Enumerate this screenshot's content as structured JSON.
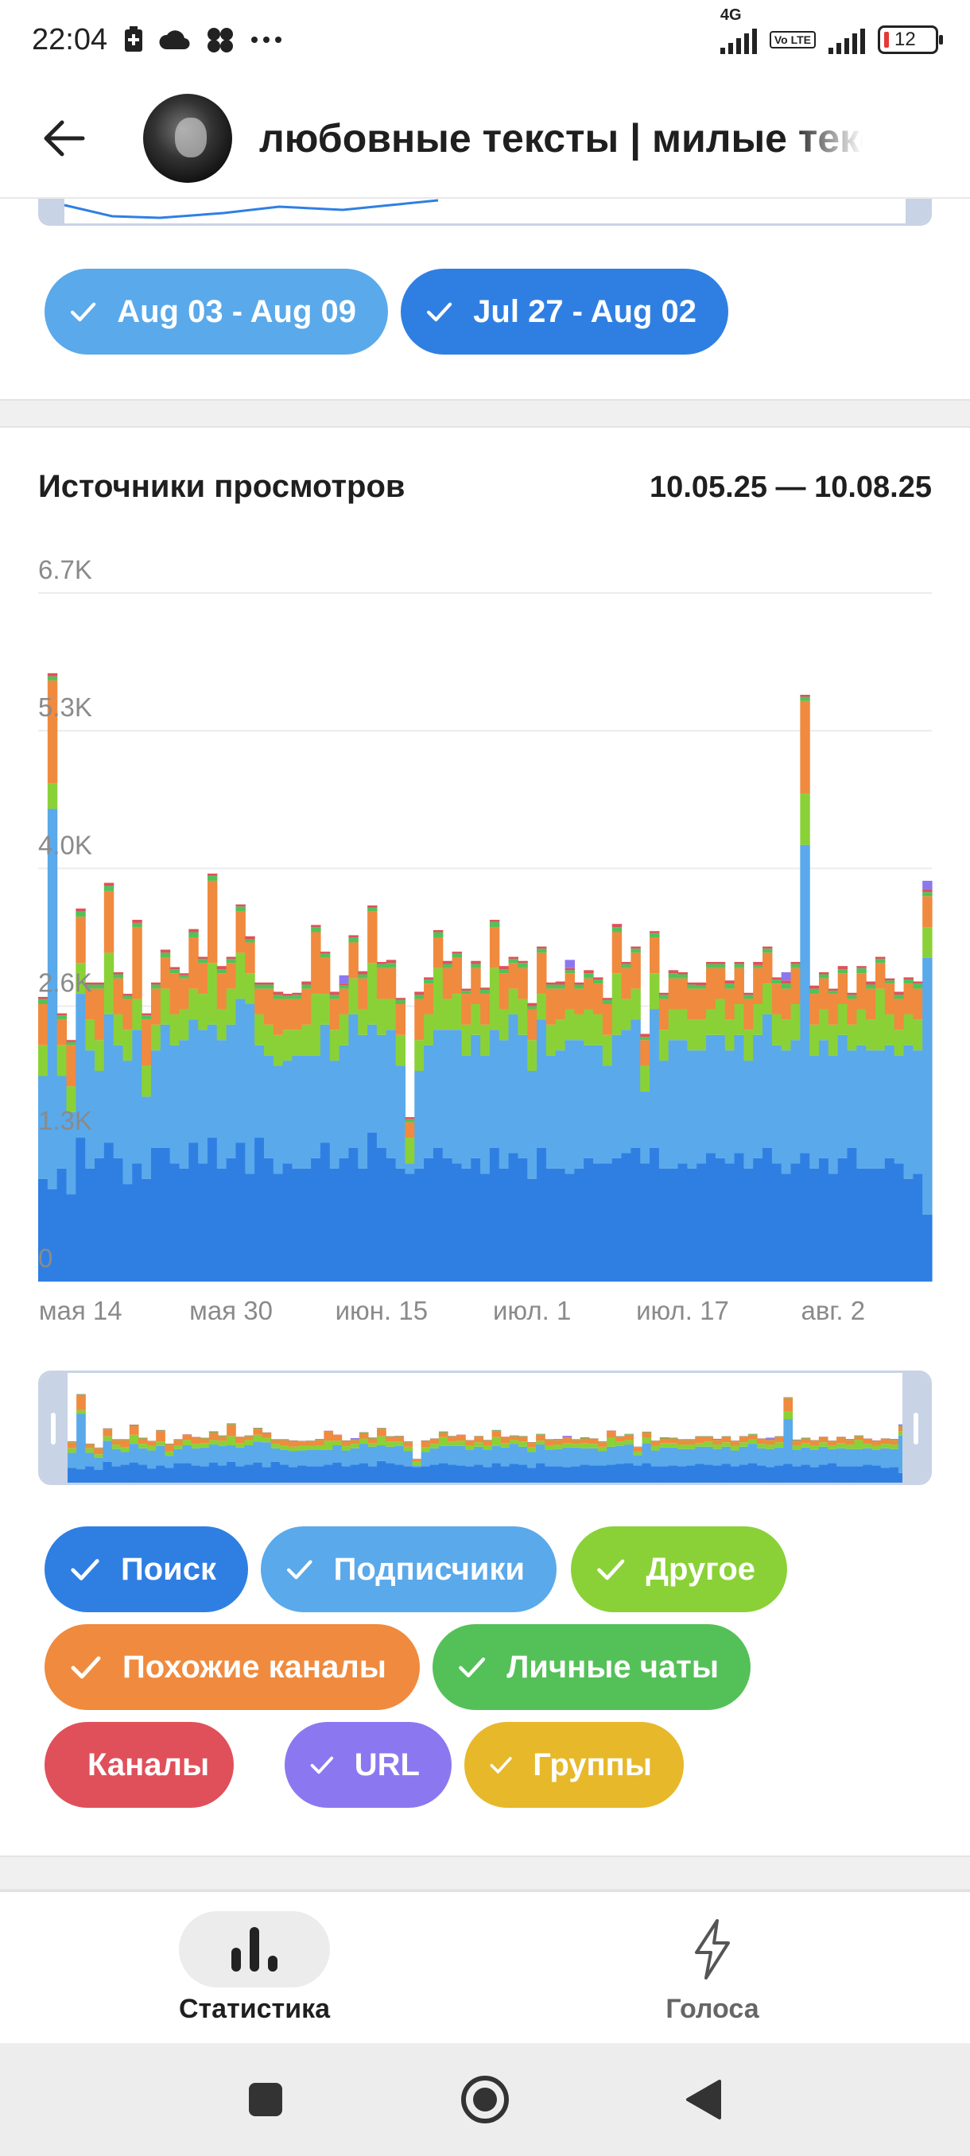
{
  "status_bar": {
    "time": "22:04",
    "network": "4G",
    "volte": "Vo LTE",
    "battery": "12"
  },
  "header": {
    "title": "любовные тексты | милые тексты",
    "back_icon": "arrow-left-icon",
    "avatar_icon": "channel-avatar"
  },
  "period_filters": [
    {
      "label": "Aug 03 - Aug 09",
      "color": "#5aa9ea"
    },
    {
      "label": "Jul 27 - Aug 02",
      "color": "#2f7fe3"
    }
  ],
  "views_sources": {
    "title": "Источники просмотров",
    "range": "10.05.25 — 10.08.25"
  },
  "chart_data": {
    "type": "bar",
    "stacked": true,
    "y_ticks": [
      "0",
      "1.3K",
      "2.6K",
      "4.0K",
      "5.3K",
      "6.7K"
    ],
    "ylim": [
      0,
      6700
    ],
    "x_ticks": [
      "мая 14",
      "мая 30",
      "июн. 15",
      "июл. 1",
      "июл. 17",
      "авг. 2"
    ],
    "x_tick_index": [
      4,
      20,
      36,
      52,
      68,
      84
    ],
    "grid": true,
    "series": [
      {
        "name": "Поиск",
        "color": "#2f7fe3",
        "values": [
          1000,
          900,
          1100,
          850,
          1400,
          1100,
          1200,
          1350,
          1200,
          950,
          1150,
          1000,
          1300,
          1300,
          1150,
          1100,
          1350,
          1150,
          1400,
          1100,
          1200,
          1350,
          1050,
          1400,
          1200,
          1050,
          1150,
          1100,
          1100,
          1200,
          1350,
          1100,
          1200,
          1300,
          1100,
          1450,
          1300,
          1200,
          1100,
          1050,
          1100,
          1200,
          1300,
          1200,
          1150,
          1100,
          1200,
          1050,
          1300,
          1100,
          1250,
          1200,
          1000,
          1300,
          1100,
          1100,
          1050,
          1100,
          1200,
          1150,
          1150,
          1200,
          1250,
          1300,
          1150,
          1300,
          1100,
          1100,
          1150,
          1100,
          1150,
          1250,
          1200,
          1150,
          1250,
          1100,
          1200,
          1300,
          1150,
          1050,
          1150,
          1250,
          1100,
          1200,
          1050,
          1200,
          1300,
          1100,
          1100,
          1100,
          1200,
          1150,
          1000,
          1050,
          650
        ]
      },
      {
        "name": "Подписчики",
        "color": "#5aa9ea",
        "values": [
          1000,
          3700,
          900,
          800,
          1400,
          1150,
          850,
          1250,
          1100,
          1200,
          1300,
          800,
          950,
          1200,
          1150,
          1250,
          1200,
          1300,
          1100,
          1250,
          1300,
          1400,
          1650,
          900,
          1000,
          1050,
          1000,
          1100,
          1100,
          1000,
          1150,
          1050,
          1100,
          1300,
          1300,
          1050,
          1100,
          1250,
          1000,
          100,
          950,
          1100,
          1150,
          1250,
          1300,
          1100,
          1200,
          1150,
          1150,
          1250,
          1350,
          1200,
          1050,
          1250,
          1100,
          1150,
          1300,
          1250,
          1100,
          1150,
          950,
          1200,
          1200,
          1250,
          700,
          1350,
          1050,
          1250,
          1200,
          1150,
          1100,
          1150,
          1200,
          1100,
          1150,
          1050,
          1200,
          1300,
          1150,
          1200,
          1200,
          3000,
          1100,
          1150,
          1150,
          1200,
          950,
          1200,
          1150,
          1150,
          1100,
          1050,
          1300,
          1200,
          2500
        ]
      },
      {
        "name": "Другое",
        "color": "#8ad137",
        "values": [
          300,
          250,
          300,
          250,
          300,
          300,
          300,
          600,
          300,
          300,
          300,
          300,
          250,
          350,
          300,
          300,
          300,
          350,
          600,
          300,
          350,
          450,
          300,
          300,
          300,
          300,
          300,
          250,
          300,
          600,
          300,
          300,
          300,
          350,
          250,
          600,
          350,
          300,
          300,
          250,
          300,
          300,
          600,
          300,
          350,
          300,
          300,
          300,
          600,
          300,
          250,
          350,
          300,
          250,
          300,
          300,
          300,
          250,
          350,
          300,
          300,
          600,
          300,
          300,
          250,
          350,
          300,
          300,
          300,
          300,
          300,
          250,
          350,
          300,
          300,
          300,
          300,
          300,
          300,
          300,
          350,
          500,
          300,
          300,
          300,
          300,
          250,
          350,
          300,
          600,
          300,
          250,
          300,
          300,
          300
        ]
      },
      {
        "name": "Похожие каналы",
        "color": "#f08a3e",
        "values": [
          400,
          1000,
          250,
          400,
          450,
          300,
          500,
          600,
          350,
          300,
          700,
          450,
          350,
          300,
          400,
          300,
          500,
          300,
          800,
          350,
          250,
          400,
          300,
          250,
          350,
          350,
          300,
          300,
          350,
          600,
          350,
          300,
          250,
          350,
          300,
          500,
          300,
          300,
          300,
          150,
          400,
          300,
          300,
          300,
          350,
          300,
          350,
          300,
          400,
          350,
          250,
          300,
          300,
          400,
          350,
          300,
          350,
          250,
          300,
          300,
          300,
          400,
          300,
          350,
          250,
          350,
          300,
          300,
          300,
          300,
          300,
          400,
          300,
          300,
          350,
          300,
          350,
          300,
          300,
          300,
          350,
          900,
          300,
          300,
          300,
          300,
          250,
          350,
          300,
          250,
          300,
          300,
          300,
          300,
          300
        ]
      },
      {
        "name": "Личные чаты",
        "color": "#54c158",
        "values": [
          50,
          40,
          40,
          30,
          50,
          40,
          40,
          50,
          40,
          30,
          40,
          40,
          40,
          50,
          40,
          30,
          50,
          40,
          50,
          40,
          40,
          50,
          30,
          40,
          40,
          40,
          30,
          40,
          40,
          50,
          40,
          40,
          30,
          50,
          40,
          40,
          40,
          50,
          40,
          30,
          40,
          40,
          50,
          40,
          40,
          30,
          40,
          40,
          50,
          40,
          40,
          50,
          30,
          40,
          40,
          40,
          30,
          40,
          50,
          40,
          40,
          50,
          40,
          40,
          30,
          40,
          40,
          50,
          40,
          40,
          30,
          40,
          40,
          50,
          40,
          40,
          30,
          40,
          40,
          50,
          40,
          40,
          50,
          40,
          30,
          40,
          40,
          50,
          40,
          40,
          30,
          40,
          40,
          50,
          40
        ]
      },
      {
        "name": "Каналы",
        "color": "#e0505a",
        "values": [
          20,
          30,
          20,
          20,
          30,
          20,
          20,
          30,
          20,
          20,
          30,
          20,
          20,
          30,
          20,
          20,
          30,
          20,
          20,
          30,
          20,
          20,
          30,
          20,
          20,
          30,
          20,
          20,
          30,
          20,
          20,
          30,
          20,
          20,
          30,
          20,
          20,
          30,
          20,
          20,
          30,
          20,
          20,
          30,
          20,
          20,
          30,
          20,
          20,
          30,
          20,
          20,
          30,
          20,
          20,
          30,
          20,
          20,
          30,
          20,
          20,
          30,
          20,
          20,
          30,
          20,
          20,
          30,
          20,
          20,
          30,
          20,
          20,
          30,
          20,
          20,
          30,
          20,
          20,
          30,
          20,
          20,
          30,
          20,
          20,
          30,
          20,
          20,
          30,
          20,
          20,
          30,
          20,
          20,
          30
        ]
      },
      {
        "name": "URL",
        "color": "#8b78f0",
        "values": [
          0,
          0,
          0,
          0,
          0,
          0,
          0,
          0,
          0,
          0,
          0,
          0,
          0,
          0,
          0,
          0,
          0,
          0,
          0,
          0,
          0,
          0,
          0,
          0,
          0,
          0,
          0,
          0,
          0,
          0,
          0,
          0,
          80,
          0,
          0,
          0,
          0,
          0,
          0,
          0,
          0,
          0,
          0,
          0,
          0,
          0,
          0,
          0,
          0,
          0,
          0,
          0,
          0,
          0,
          0,
          0,
          80,
          0,
          0,
          0,
          0,
          0,
          0,
          0,
          0,
          0,
          0,
          0,
          0,
          0,
          0,
          0,
          0,
          0,
          0,
          0,
          0,
          0,
          0,
          80,
          0,
          0,
          0,
          0,
          0,
          0,
          0,
          0,
          0,
          0,
          0,
          0,
          0,
          0,
          80
        ]
      },
      {
        "name": "Группы",
        "color": "#e7b82a",
        "values": [
          0,
          0,
          0,
          0,
          0,
          0,
          0,
          0,
          0,
          0,
          0,
          0,
          0,
          0,
          0,
          0,
          0,
          0,
          0,
          0,
          0,
          0,
          0,
          0,
          0,
          0,
          0,
          0,
          0,
          0,
          0,
          0,
          0,
          0,
          0,
          0,
          0,
          0,
          0,
          0,
          0,
          0,
          0,
          0,
          0,
          0,
          0,
          0,
          0,
          0,
          0,
          0,
          0,
          0,
          0,
          0,
          0,
          0,
          0,
          0,
          0,
          0,
          0,
          0,
          0,
          0,
          0,
          0,
          0,
          0,
          0,
          0,
          0,
          0,
          0,
          0,
          0,
          0,
          0,
          0,
          0,
          0,
          0,
          0,
          0,
          0,
          0,
          0,
          0,
          0,
          0,
          0,
          0,
          0,
          0
        ]
      }
    ]
  },
  "source_filters": [
    {
      "label": "Поиск",
      "color": "#2f7fe3"
    },
    {
      "label": "Подписчики",
      "color": "#5aa9ea"
    },
    {
      "label": "Другое",
      "color": "#8ad137"
    },
    {
      "label": "Похожие каналы",
      "color": "#f08a3e"
    },
    {
      "label": "Личные чаты",
      "color": "#54c158"
    },
    {
      "label": "Каналы",
      "color": "#e0505a"
    },
    {
      "label": "URL",
      "color": "#8b78f0"
    },
    {
      "label": "Группы",
      "color": "#e7b82a"
    }
  ],
  "bottom_nav": {
    "statistics_label": "Статистика",
    "statistics_icon": "bar-chart-icon",
    "votes_label": "Голоса",
    "votes_icon": "lightning-icon"
  },
  "system_nav": {
    "recents_icon": "square-icon",
    "home_icon": "circle-icon",
    "back_icon": "triangle-back-icon"
  }
}
